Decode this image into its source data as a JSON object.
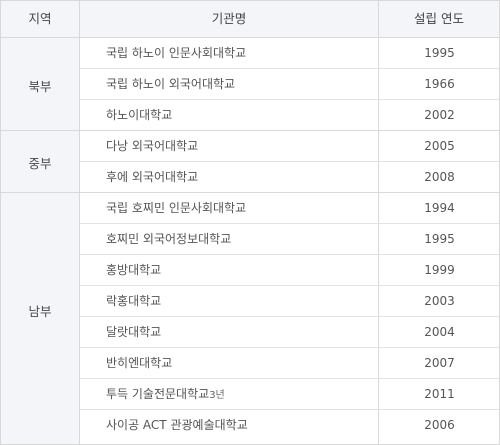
{
  "table": {
    "headers": {
      "region": "지역",
      "name": "기관명",
      "year": "설립 연도"
    },
    "groups": [
      {
        "region": "북부",
        "rows": [
          {
            "name": "국립 하노이 인문사회대학교",
            "year": "1995"
          },
          {
            "name": "국립 하노이 외국어대학교",
            "year": "1966"
          },
          {
            "name": "하노이대학교",
            "year": "2002"
          }
        ]
      },
      {
        "region": "중부",
        "rows": [
          {
            "name": "다낭 외국어대학교",
            "year": "2005"
          },
          {
            "name": "후에 외국어대학교",
            "year": "2008"
          }
        ]
      },
      {
        "region": "남부",
        "rows": [
          {
            "name": "국립 호찌민 인문사회대학교",
            "year": "1994"
          },
          {
            "name": "호찌민 외국어정보대학교",
            "year": "1995"
          },
          {
            "name": "홍방대학교",
            "year": "1999"
          },
          {
            "name": "락홍대학교",
            "year": "2003"
          },
          {
            "name": "달랏대학교",
            "year": "2004"
          },
          {
            "name": "반히엔대학교",
            "year": "2007"
          },
          {
            "name": "투득 기술전문대학교",
            "suffix": "3년",
            "year": "2011"
          },
          {
            "name": "사이공 ACT 관광예술대학교",
            "year": "2006"
          }
        ]
      }
    ]
  }
}
